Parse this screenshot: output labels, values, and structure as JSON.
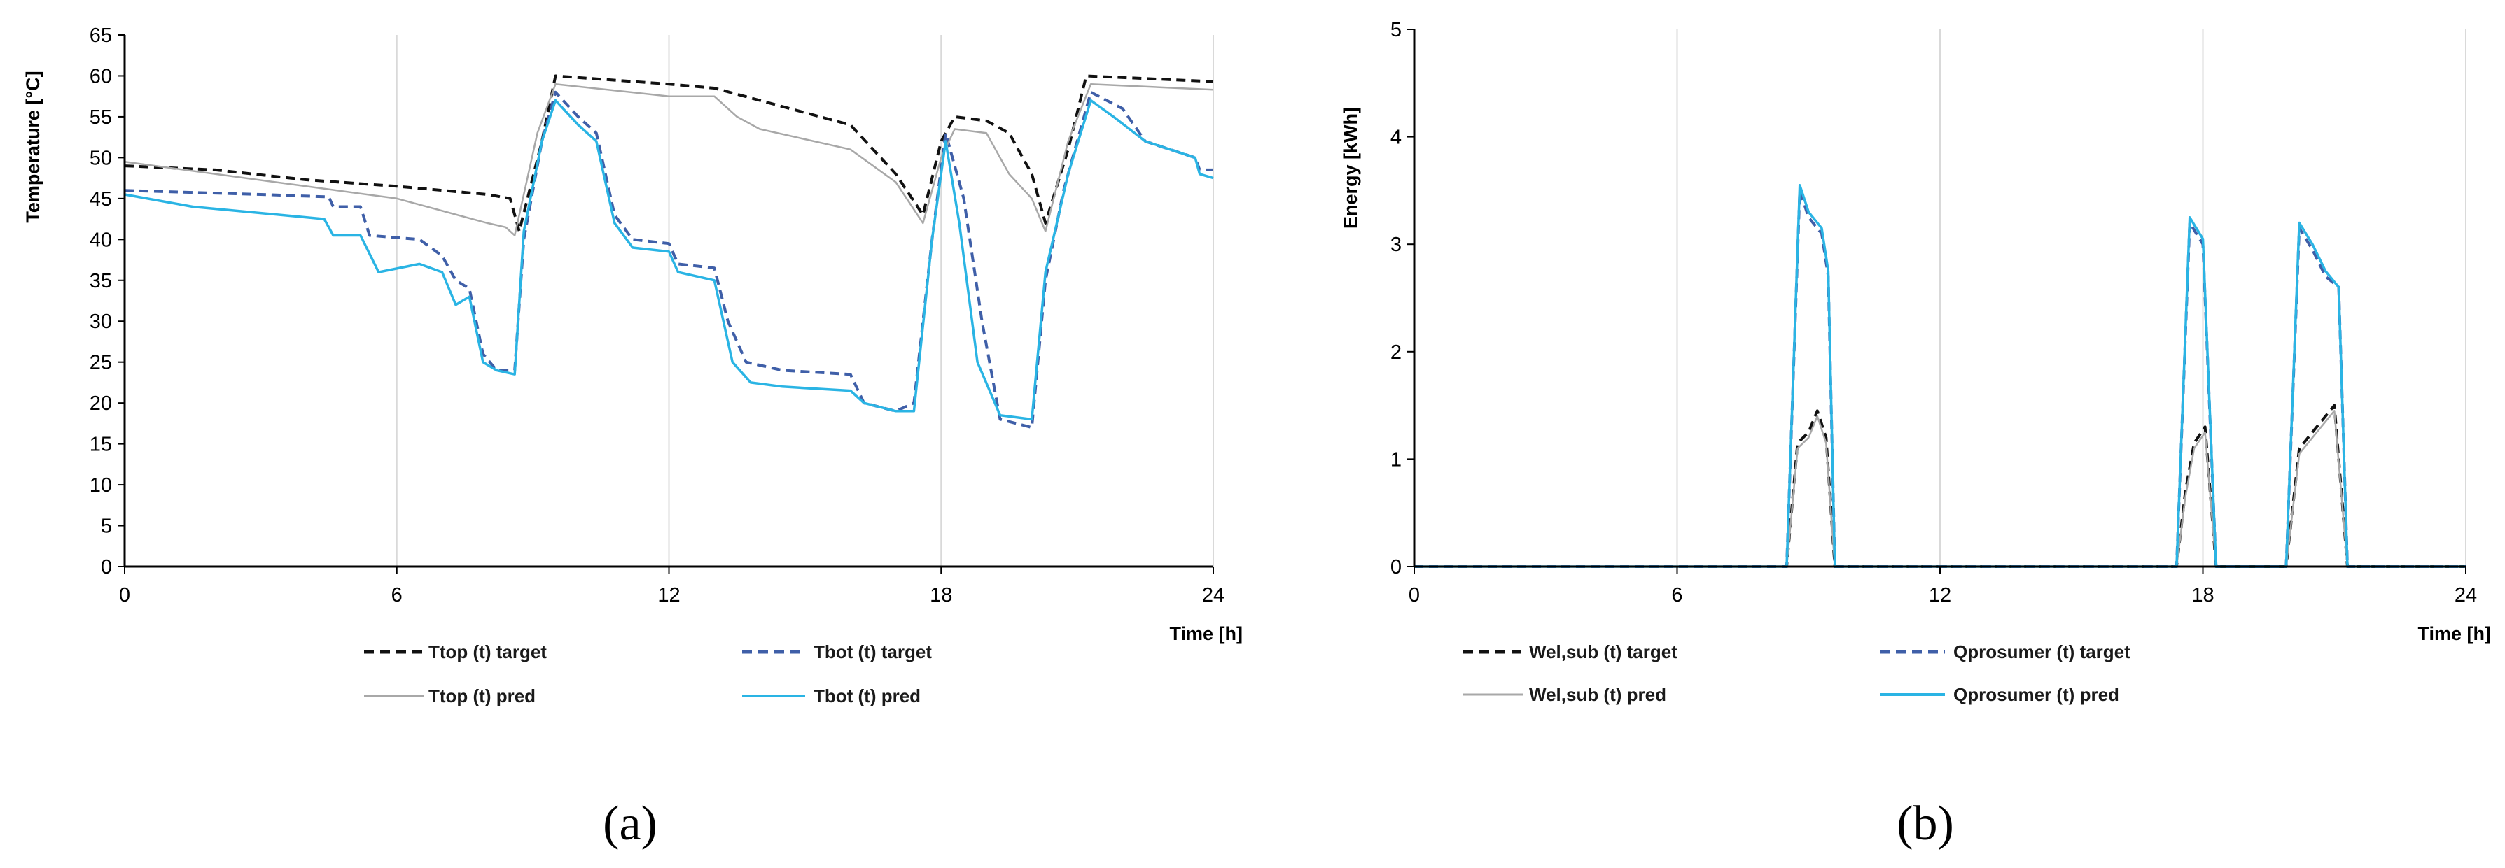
{
  "chart_data": [
    {
      "panel": "a",
      "type": "line",
      "title": "",
      "xlabel": "Time [h]",
      "ylabel": "Temperature [°C]",
      "xlim": [
        0,
        24
      ],
      "ylim": [
        0,
        65
      ],
      "xticks": [
        0,
        6,
        12,
        18,
        24
      ],
      "yticks": [
        0,
        5,
        10,
        15,
        20,
        25,
        30,
        35,
        40,
        45,
        50,
        55,
        60,
        65
      ],
      "grid": "vertical",
      "legend": "bottom",
      "series": [
        {
          "name": "Ttop (t) target",
          "color": "#111111",
          "style": "dashed",
          "points": [
            [
              0,
              49
            ],
            [
              2,
              48.5
            ],
            [
              4,
              47.3
            ],
            [
              6,
              46.5
            ],
            [
              8,
              45.5
            ],
            [
              8.5,
              45
            ],
            [
              8.7,
              41
            ],
            [
              9.2,
              52
            ],
            [
              9.5,
              60
            ],
            [
              12,
              59
            ],
            [
              13,
              58.5
            ],
            [
              14,
              57
            ],
            [
              16,
              54
            ],
            [
              17,
              48
            ],
            [
              17.6,
              43
            ],
            [
              18,
              52
            ],
            [
              18.3,
              55
            ],
            [
              19,
              54.5
            ],
            [
              19.5,
              53
            ],
            [
              20,
              48
            ],
            [
              20.3,
              42
            ],
            [
              20.8,
              51
            ],
            [
              21.2,
              60
            ],
            [
              24,
              59.3
            ]
          ]
        },
        {
          "name": "Tbot (t) target",
          "color": "#3f5fa8",
          "style": "dashed",
          "points": [
            [
              0,
              46
            ],
            [
              3,
              45.5
            ],
            [
              4.5,
              45.2
            ],
            [
              4.6,
              44
            ],
            [
              5.2,
              44
            ],
            [
              5.4,
              40.5
            ],
            [
              6.5,
              40
            ],
            [
              7,
              38
            ],
            [
              7.3,
              35
            ],
            [
              7.6,
              34
            ],
            [
              7.9,
              26
            ],
            [
              8.2,
              24
            ],
            [
              8.6,
              24
            ],
            [
              8.8,
              40
            ],
            [
              9.2,
              52
            ],
            [
              9.5,
              58
            ],
            [
              10,
              55
            ],
            [
              10.4,
              53
            ],
            [
              10.8,
              43
            ],
            [
              11.2,
              40
            ],
            [
              12,
              39.5
            ],
            [
              12.2,
              37
            ],
            [
              13,
              36.5
            ],
            [
              13.3,
              30
            ],
            [
              13.7,
              25
            ],
            [
              14.5,
              24
            ],
            [
              16,
              23.5
            ],
            [
              16.3,
              20
            ],
            [
              17,
              19
            ],
            [
              17.4,
              20
            ],
            [
              17.8,
              40
            ],
            [
              18.1,
              53
            ],
            [
              18.5,
              45
            ],
            [
              18.9,
              30
            ],
            [
              19.3,
              18
            ],
            [
              20,
              17
            ],
            [
              20.3,
              35
            ],
            [
              20.7,
              46
            ],
            [
              21.3,
              58
            ],
            [
              22,
              56
            ],
            [
              22.5,
              52
            ],
            [
              23.6,
              50
            ],
            [
              23.7,
              48.5
            ],
            [
              24,
              48.5
            ]
          ]
        },
        {
          "name": "Ttop (t) pred",
          "color": "#a8a8a8",
          "style": "solid",
          "points": [
            [
              0,
              49.5
            ],
            [
              2,
              48
            ],
            [
              4,
              46.5
            ],
            [
              6,
              45
            ],
            [
              8,
              42
            ],
            [
              8.4,
              41.5
            ],
            [
              8.6,
              40.5
            ],
            [
              9.1,
              53
            ],
            [
              9.5,
              59
            ],
            [
              12,
              57.5
            ],
            [
              13,
              57.5
            ],
            [
              13.5,
              55
            ],
            [
              14,
              53.5
            ],
            [
              16,
              51
            ],
            [
              17,
              47
            ],
            [
              17.6,
              42
            ],
            [
              18,
              50
            ],
            [
              18.3,
              53.5
            ],
            [
              19,
              53
            ],
            [
              19.5,
              48
            ],
            [
              20,
              45
            ],
            [
              20.3,
              41
            ],
            [
              20.8,
              52
            ],
            [
              21.3,
              59
            ],
            [
              24,
              58.3
            ]
          ]
        },
        {
          "name": "Tbot (t) pred",
          "color": "#2ab4e4",
          "style": "solid",
          "points": [
            [
              0,
              45.5
            ],
            [
              1.5,
              44
            ],
            [
              4.4,
              42.5
            ],
            [
              4.6,
              40.5
            ],
            [
              5.2,
              40.5
            ],
            [
              5.6,
              36
            ],
            [
              6.5,
              37
            ],
            [
              7,
              36
            ],
            [
              7.3,
              32
            ],
            [
              7.6,
              33
            ],
            [
              7.9,
              25
            ],
            [
              8.2,
              24
            ],
            [
              8.6,
              23.5
            ],
            [
              8.8,
              41
            ],
            [
              9.2,
              52
            ],
            [
              9.5,
              57
            ],
            [
              10,
              54
            ],
            [
              10.4,
              52
            ],
            [
              10.8,
              42
            ],
            [
              11.2,
              39
            ],
            [
              12,
              38.5
            ],
            [
              12.2,
              36
            ],
            [
              13,
              35
            ],
            [
              13.4,
              25
            ],
            [
              13.8,
              22.5
            ],
            [
              14.5,
              22
            ],
            [
              16,
              21.5
            ],
            [
              16.3,
              20
            ],
            [
              17,
              19
            ],
            [
              17.4,
              19
            ],
            [
              17.8,
              40
            ],
            [
              18.1,
              52
            ],
            [
              18.4,
              42
            ],
            [
              18.8,
              25
            ],
            [
              19.3,
              18.5
            ],
            [
              20,
              18
            ],
            [
              20.3,
              36
            ],
            [
              20.8,
              48
            ],
            [
              21.3,
              57
            ],
            [
              21.8,
              55
            ],
            [
              22.5,
              52
            ],
            [
              23.6,
              50
            ],
            [
              23.7,
              48
            ],
            [
              24,
              47.5
            ]
          ]
        }
      ]
    },
    {
      "panel": "b",
      "type": "line",
      "title": "",
      "xlabel": "Time [h]",
      "ylabel": "Energy [kWh]",
      "xlim": [
        0,
        24
      ],
      "ylim": [
        0,
        5
      ],
      "xticks": [
        0,
        6,
        12,
        18,
        24
      ],
      "yticks": [
        0,
        1,
        2,
        3,
        4,
        5
      ],
      "grid": "vertical",
      "legend": "bottom",
      "series": [
        {
          "name": "Wel,sub (t) target",
          "color": "#111111",
          "style": "dashed",
          "points": [
            [
              0,
              0
            ],
            [
              8.5,
              0
            ],
            [
              8.75,
              1.15
            ],
            [
              9,
              1.25
            ],
            [
              9.2,
              1.45
            ],
            [
              9.4,
              1.2
            ],
            [
              9.6,
              0
            ],
            [
              17.4,
              0
            ],
            [
              17.6,
              0.7
            ],
            [
              17.8,
              1.15
            ],
            [
              18.05,
              1.3
            ],
            [
              18.3,
              0
            ],
            [
              19.9,
              0
            ],
            [
              20.2,
              1.1
            ],
            [
              20.6,
              1.3
            ],
            [
              21,
              1.5
            ],
            [
              21.3,
              0
            ],
            [
              24,
              0
            ]
          ]
        },
        {
          "name": "Qprosumer (t) target",
          "color": "#3f5fa8",
          "style": "dashed",
          "points": [
            [
              0,
              0
            ],
            [
              8.5,
              0
            ],
            [
              8.8,
              3.5
            ],
            [
              9,
              3.25
            ],
            [
              9.3,
              3.1
            ],
            [
              9.45,
              2.7
            ],
            [
              9.6,
              0
            ],
            [
              17.4,
              0
            ],
            [
              17.7,
              3.2
            ],
            [
              18,
              3
            ],
            [
              18.3,
              0
            ],
            [
              19.9,
              0
            ],
            [
              20.2,
              3.15
            ],
            [
              20.5,
              2.95
            ],
            [
              20.8,
              2.7
            ],
            [
              21.1,
              2.6
            ],
            [
              21.3,
              0
            ],
            [
              24,
              0
            ]
          ]
        },
        {
          "name": "Wel,sub (t) pred",
          "color": "#a8a8a8",
          "style": "solid",
          "points": [
            [
              0,
              0
            ],
            [
              8.5,
              0
            ],
            [
              8.75,
              1.1
            ],
            [
              9,
              1.2
            ],
            [
              9.2,
              1.4
            ],
            [
              9.4,
              1.15
            ],
            [
              9.6,
              0
            ],
            [
              17.4,
              0
            ],
            [
              17.6,
              0.65
            ],
            [
              17.8,
              1.1
            ],
            [
              18.05,
              1.25
            ],
            [
              18.3,
              0
            ],
            [
              19.9,
              0
            ],
            [
              20.2,
              1.05
            ],
            [
              20.6,
              1.25
            ],
            [
              21,
              1.45
            ],
            [
              21.3,
              0
            ],
            [
              24,
              0
            ]
          ]
        },
        {
          "name": "Qprosumer (t)  pred",
          "color": "#2ab4e4",
          "style": "solid",
          "points": [
            [
              0,
              0
            ],
            [
              8.5,
              0
            ],
            [
              8.8,
              3.55
            ],
            [
              9,
              3.3
            ],
            [
              9.3,
              3.15
            ],
            [
              9.45,
              2.75
            ],
            [
              9.6,
              0
            ],
            [
              17.4,
              0
            ],
            [
              17.7,
              3.25
            ],
            [
              18,
              3.05
            ],
            [
              18.3,
              0
            ],
            [
              19.9,
              0
            ],
            [
              20.2,
              3.2
            ],
            [
              20.5,
              3
            ],
            [
              20.8,
              2.75
            ],
            [
              21.1,
              2.6
            ],
            [
              21.3,
              0
            ],
            [
              24,
              0
            ]
          ]
        }
      ]
    }
  ],
  "panel_labels": [
    "(a)",
    "(b)"
  ]
}
